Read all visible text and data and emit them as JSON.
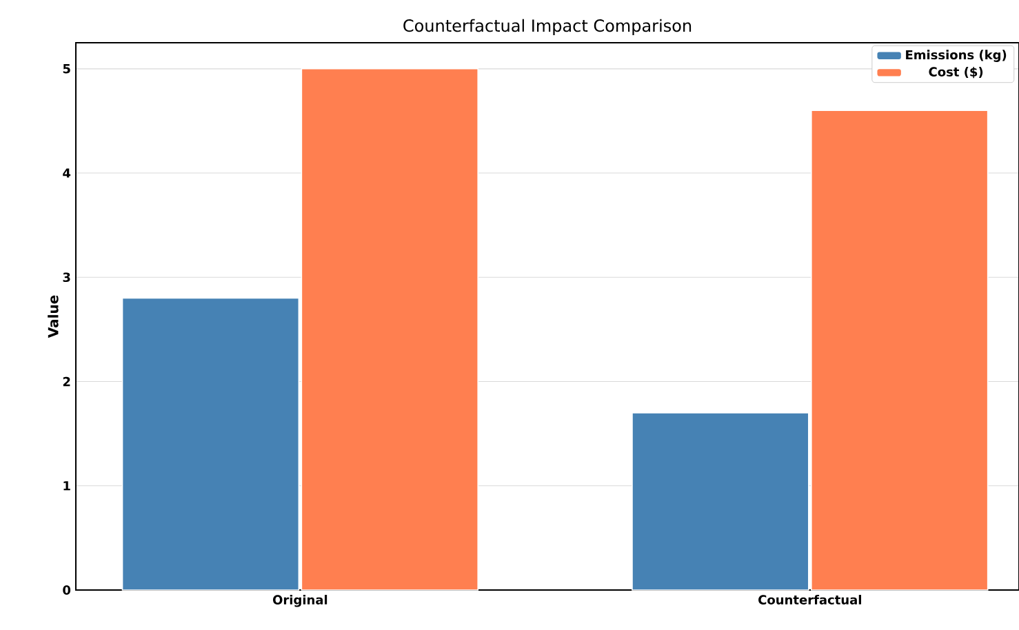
{
  "chart_data": {
    "type": "bar",
    "title": "Counterfactual Impact Comparison",
    "ylabel": "Value",
    "categories": [
      "Original",
      "Counterfactual"
    ],
    "series": [
      {
        "name": "Emissions (kg)",
        "color": "#4682b4",
        "values": [
          2.8,
          1.7
        ]
      },
      {
        "name": "Cost ($)",
        "color": "#ff7f50",
        "values": [
          5.0,
          4.6
        ]
      }
    ],
    "ylim": [
      0,
      5.25
    ],
    "yticks": [
      0,
      1,
      2,
      3,
      4,
      5
    ],
    "grid": "y",
    "legend": "top right"
  }
}
